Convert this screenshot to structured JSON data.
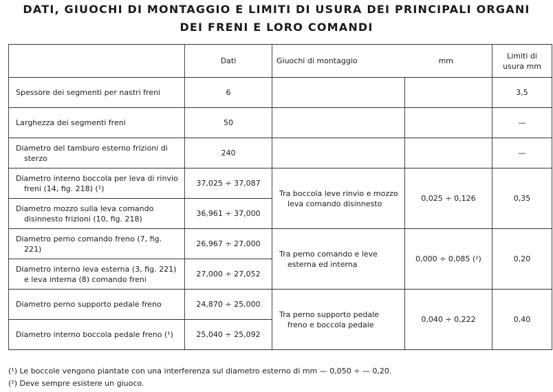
{
  "title": {
    "line1": "DATI, GIUOCHI DI MONTAGGIO E LIMITI DI USURA DEI PRINCIPALI ORGANI",
    "line2": "DEI FRENI E LORO COMANDI"
  },
  "table": {
    "headers": {
      "dati": "Dati",
      "giuochi": "Giuochi di montaggio",
      "mm": "mm",
      "limiti": "Limiti di usura mm"
    },
    "rows": [
      {
        "desc": "Spessore dei segmenti per nastri freni",
        "dati": "6",
        "limite": "3,5"
      },
      {
        "desc": "Larghezza dei segmenti freni",
        "dati": "50",
        "limite": "—"
      },
      {
        "desc": "Diametro del tamburo esterno frizioni di sterzo",
        "dati": "240",
        "limite": "—"
      },
      {
        "desc": "Diametro interno boccola per leva di rinvio freni (14, fig. 218) (¹)",
        "dati": "37,025 ÷ 37,087"
      },
      {
        "desc": "Diametro mozzo sulla leva comando disinnesto frizioni (10, fig. 218)",
        "dati": "36,961 ÷ 37,000"
      },
      {
        "desc": "Diametro perno comando freno (7, fig. 221)",
        "dati": "26,967 ÷ 27,000"
      },
      {
        "desc": "Diametro interno leva esterna (3, fig. 221) e leva interna (8) comando freni",
        "dati": "27,000 ÷ 27,052"
      },
      {
        "desc": "Diametro perno supporto pedale freno",
        "dati": "24,870 ÷ 25,000"
      },
      {
        "desc": "Diametro interno boccola pedale freno (¹)",
        "dati": "25,040 ÷ 25,092"
      }
    ],
    "groups": [
      {
        "giuoco": "Tra boccola leve rinvio e mozzo leva comando disinnesto",
        "mm": "0,025 ÷ 0,126",
        "limite": "0,35"
      },
      {
        "giuoco": "Tra perno comando e leve esterna ed interna",
        "mm": "0,000 ÷ 0,085 (²)",
        "limite": "0,20"
      },
      {
        "giuoco": "Tra perno supporto pedale freno e boccola pedale",
        "mm": "0,040 ÷ 0,222",
        "limite": "0,40"
      }
    ]
  },
  "footnotes": [
    "(¹) Le boccole vengono piantate con una interferenza sul diametro esterno di mm — 0,050 ÷ — 0,20.",
    "(²) Deve sempre esistere un giuoco."
  ]
}
